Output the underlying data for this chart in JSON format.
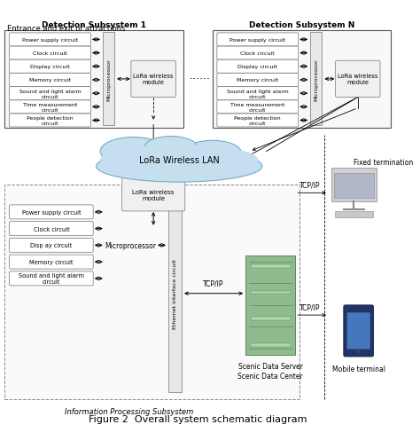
{
  "title": "Figure 2  Overall system schematic diagram",
  "top_label": "Entrance and exit of attractions",
  "subsystem1_title": "Detection Subsystem 1",
  "subsystemN_title": "Detection Subsystem N",
  "circuit_boxes": [
    "Power supply circuit",
    "Clock circuit",
    "Display circuit",
    "Memory circuit",
    "Sound and light alarm\ncircuit",
    "Time measurement\ncircuit",
    "People detection\ncircuit"
  ],
  "circuit_boxes_bottom": [
    "Power supply circuit",
    "Clock circuit",
    "Disp ay circuit",
    "Memory circuit",
    "Sound and light alarm\ncircuit"
  ],
  "lora_wireless_lan": "LoRa Wireless LAN",
  "lora_module_label": "LoRa wireless\nmodule",
  "microprocessor_label": "Microprocessor",
  "ethernet_label": "Ethernet interface circuit",
  "tcp_ip": "TCP/IP",
  "scenic_server": "Scenic Data Server",
  "scenic_center": "Scenic Data Center",
  "fixed_term": "Fixed termination",
  "mobile_term": "Mobile terminal",
  "info_subsystem": "Information Processing Subsystem",
  "dots_label": "......",
  "bg_color": "#ffffff"
}
